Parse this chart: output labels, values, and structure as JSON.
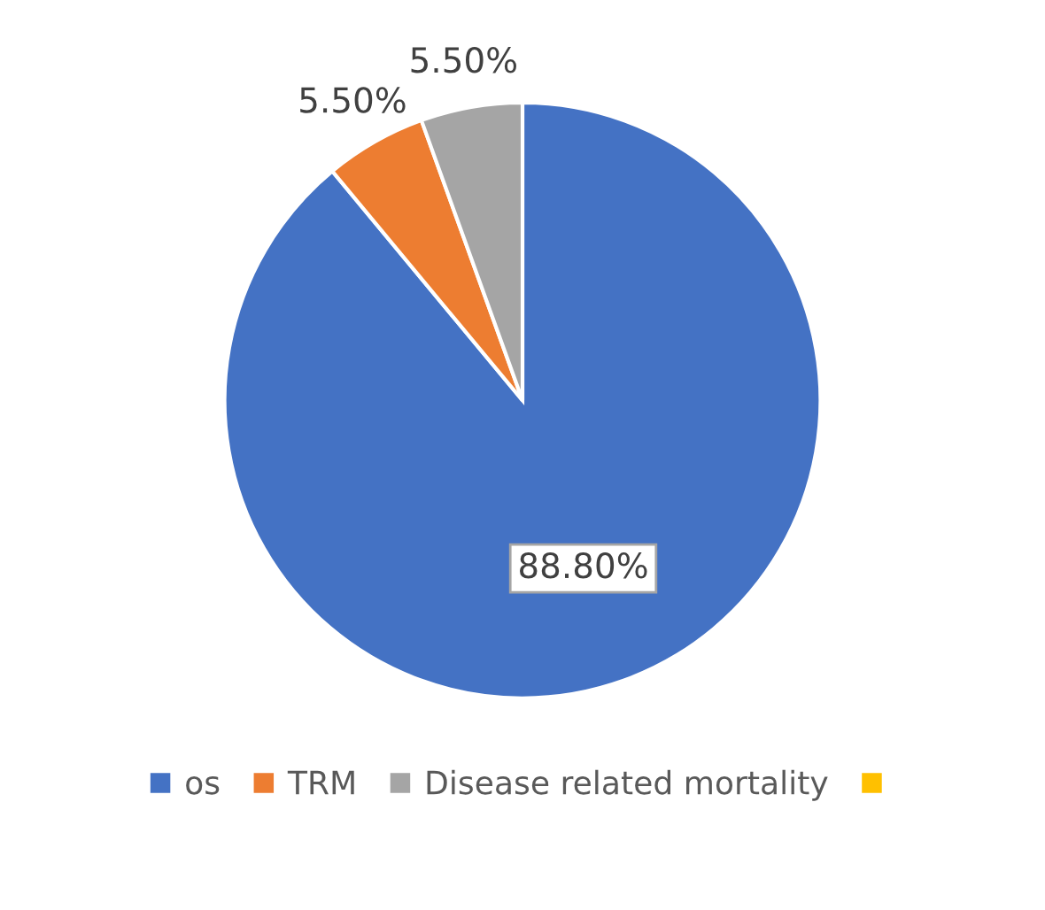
{
  "chart_data": {
    "type": "pie",
    "categories": [
      "os",
      "TRM",
      "Disease related mortality",
      null
    ],
    "values": [
      88.8,
      5.5,
      5.5,
      0
    ],
    "colors": [
      "#4472c4",
      "#ed7d31",
      "#a5a5a5",
      "#ffc000"
    ],
    "value_labels": [
      "88.80%",
      "5.50%",
      "5.50%",
      null
    ],
    "legend": "bottom"
  }
}
